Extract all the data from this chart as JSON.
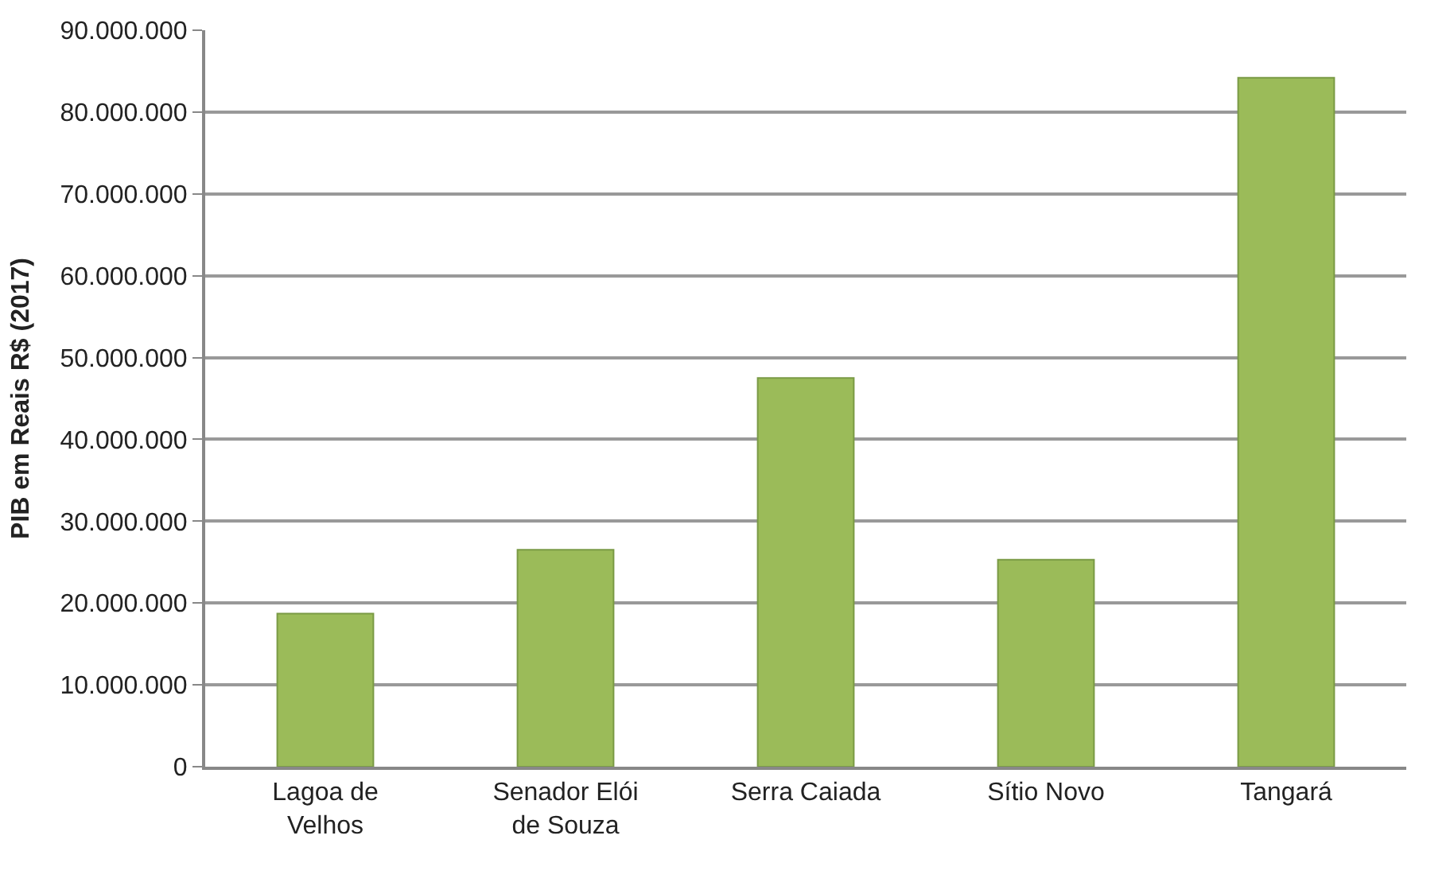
{
  "chart_data": {
    "type": "bar",
    "ylabel": "PIB em Reais R$ (2017)",
    "categories": [
      "Lagoa de Velhos",
      "Senador Elói de Souza",
      "Serra Caiada",
      "Sítio Novo",
      "Tangará"
    ],
    "values": [
      18700000,
      26500000,
      47500000,
      25300000,
      84200000
    ],
    "color": "#9bbb59",
    "ylim": [
      0,
      90000000
    ],
    "yticks": [
      {
        "value": 0,
        "label": "0"
      },
      {
        "value": 10000000,
        "label": "10.000.000"
      },
      {
        "value": 20000000,
        "label": "20.000.000"
      },
      {
        "value": 30000000,
        "label": "30.000.000"
      },
      {
        "value": 40000000,
        "label": "40.000.000"
      },
      {
        "value": 50000000,
        "label": "50.000.000"
      },
      {
        "value": 60000000,
        "label": "60.000.000"
      },
      {
        "value": 70000000,
        "label": "70.000.000"
      },
      {
        "value": 80000000,
        "label": "80.000.000"
      },
      {
        "value": 90000000,
        "label": "90.000.000"
      }
    ],
    "grid": "y"
  }
}
